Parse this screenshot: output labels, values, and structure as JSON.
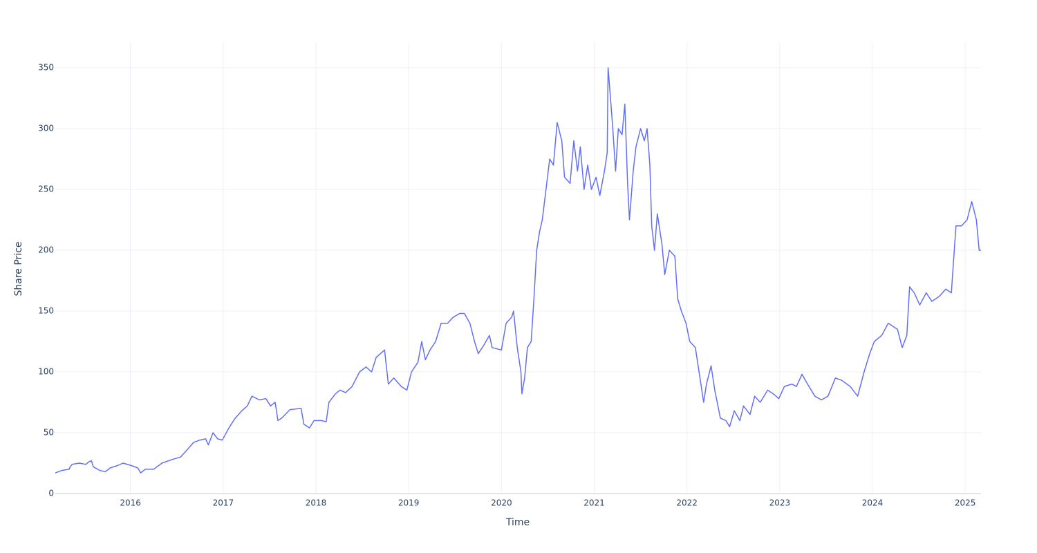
{
  "chart_data": {
    "type": "line",
    "x_label": "Time",
    "y_label": "Share Price",
    "color": "#636efa",
    "grid": true,
    "xlim": [
      2015.19,
      2025.17
    ],
    "ylim": [
      0,
      371
    ],
    "xticks": [
      2016,
      2017,
      2018,
      2019,
      2020,
      2021,
      2022,
      2023,
      2024,
      2025
    ],
    "yticks": [
      0,
      50,
      100,
      150,
      200,
      250,
      300,
      350
    ],
    "x": [
      2015.19,
      2015.26,
      2015.34,
      2015.35,
      2015.37,
      2015.45,
      2015.52,
      2015.55,
      2015.58,
      2015.6,
      2015.67,
      2015.73,
      2015.78,
      2015.86,
      2015.92,
      2016.01,
      2016.08,
      2016.11,
      2016.16,
      2016.25,
      2016.34,
      2016.45,
      2016.54,
      2016.6,
      2016.68,
      2016.75,
      2016.81,
      2016.84,
      2016.89,
      2016.94,
      2016.99,
      2017.07,
      2017.13,
      2017.2,
      2017.26,
      2017.31,
      2017.39,
      2017.46,
      2017.51,
      2017.56,
      2017.59,
      2017.63,
      2017.72,
      2017.84,
      2017.87,
      2017.93,
      2017.98,
      2018.06,
      2018.11,
      2018.14,
      2018.21,
      2018.26,
      2018.32,
      2018.39,
      2018.47,
      2018.54,
      2018.6,
      2018.65,
      2018.74,
      2018.78,
      2018.84,
      2018.92,
      2018.98,
      2019.03,
      2019.1,
      2019.14,
      2019.18,
      2019.23,
      2019.29,
      2019.35,
      2019.42,
      2019.48,
      2019.55,
      2019.6,
      2019.66,
      2019.71,
      2019.75,
      2019.81,
      2019.87,
      2019.9,
      2020.0,
      2020.05,
      2020.11,
      2020.13,
      2020.17,
      2020.21,
      2020.22,
      2020.25,
      2020.28,
      2020.32,
      2020.35,
      2020.38,
      2020.41,
      2020.44,
      2020.48,
      2020.52,
      2020.56,
      2020.6,
      2020.65,
      2020.68,
      2020.74,
      2020.78,
      2020.82,
      2020.85,
      2020.89,
      2020.93,
      2020.97,
      2021.02,
      2021.06,
      2021.11,
      2021.14,
      2021.15,
      2021.18,
      2021.2,
      2021.23,
      2021.26,
      2021.3,
      2021.33,
      2021.36,
      2021.38,
      2021.42,
      2021.45,
      2021.5,
      2021.54,
      2021.57,
      2021.6,
      2021.62,
      2021.65,
      2021.68,
      2021.73,
      2021.76,
      2021.81,
      2021.87,
      2021.9,
      2021.94,
      2021.99,
      2022.03,
      2022.09,
      2022.14,
      2022.18,
      2022.21,
      2022.26,
      2022.3,
      2022.36,
      2022.42,
      2022.46,
      2022.51,
      2022.57,
      2022.61,
      2022.68,
      2022.73,
      2022.79,
      2022.87,
      2022.93,
      2022.99,
      2023.05,
      2023.13,
      2023.18,
      2023.24,
      2023.3,
      2023.38,
      2023.45,
      2023.52,
      2023.6,
      2023.67,
      2023.76,
      2023.84,
      2023.91,
      2023.97,
      2024.02,
      2024.1,
      2024.17,
      2024.27,
      2024.32,
      2024.37,
      2024.4,
      2024.45,
      2024.51,
      2024.58,
      2024.64,
      2024.72,
      2024.79,
      2024.85,
      2024.9,
      2024.96,
      2025.02,
      2025.07,
      2025.12,
      2025.15,
      2025.17
    ],
    "values": [
      17,
      19,
      20,
      22,
      24,
      25,
      24,
      26,
      27,
      22,
      19,
      18,
      21,
      23,
      25,
      23,
      21,
      17,
      20,
      20,
      25,
      28,
      30,
      35,
      42,
      44,
      45,
      40,
      50,
      45,
      44,
      55,
      62,
      68,
      72,
      80,
      77,
      78,
      72,
      75,
      60,
      62,
      69,
      70,
      57,
      54,
      60,
      60,
      59,
      75,
      82,
      85,
      83,
      88,
      100,
      104,
      100,
      112,
      118,
      90,
      95,
      88,
      85,
      100,
      108,
      125,
      110,
      118,
      125,
      140,
      140,
      145,
      148,
      148,
      140,
      125,
      115,
      122,
      130,
      120,
      118,
      140,
      145,
      150,
      120,
      100,
      82,
      95,
      120,
      125,
      160,
      200,
      215,
      225,
      250,
      275,
      270,
      305,
      290,
      260,
      255,
      290,
      265,
      285,
      250,
      270,
      250,
      260,
      245,
      265,
      280,
      350,
      320,
      300,
      265,
      300,
      295,
      320,
      255,
      225,
      265,
      285,
      300,
      290,
      300,
      270,
      220,
      200,
      230,
      205,
      180,
      200,
      195,
      160,
      150,
      140,
      125,
      120,
      95,
      75,
      90,
      105,
      85,
      62,
      60,
      55,
      68,
      60,
      72,
      65,
      80,
      75,
      85,
      82,
      78,
      88,
      90,
      88,
      98,
      90,
      80,
      77,
      80,
      95,
      93,
      88,
      80,
      100,
      115,
      125,
      130,
      140,
      135,
      120,
      130,
      170,
      165,
      155,
      165,
      158,
      162,
      168,
      165,
      220,
      220,
      225,
      240,
      225,
      200,
      200
    ]
  }
}
